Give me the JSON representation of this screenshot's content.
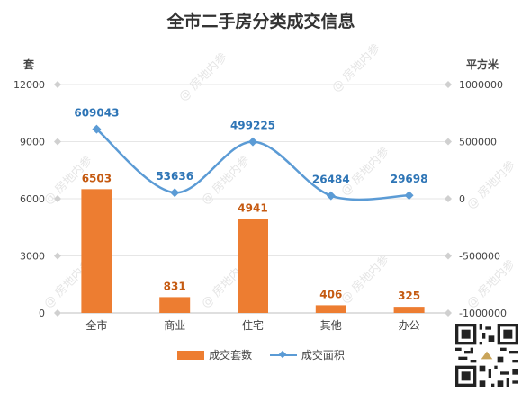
{
  "title": "全市二手房分类成交信息",
  "watermark": "@ 房地内参",
  "chart_data": {
    "type": "bar+line",
    "categories": [
      "全市",
      "商业",
      "住宅",
      "其他",
      "办公"
    ],
    "left_axis": {
      "unit": "套",
      "ylim": [
        0,
        12000
      ],
      "ticks": [
        0,
        3000,
        6000,
        9000,
        12000
      ]
    },
    "right_axis": {
      "unit": "平方米",
      "ylim": [
        -1000000,
        1000000
      ],
      "ticks": [
        -1000000,
        -500000,
        0,
        500000,
        1000000
      ]
    },
    "series": [
      {
        "name": "成交套数",
        "type": "bar",
        "axis": "left",
        "color": "#ed7d31",
        "values": [
          6503,
          831,
          4941,
          406,
          325
        ]
      },
      {
        "name": "成交面积",
        "type": "line",
        "axis": "right",
        "color": "#5b9bd5",
        "values": [
          609043,
          53636,
          499225,
          26484,
          29698
        ]
      }
    ],
    "grid": true,
    "legend": "bottom"
  }
}
